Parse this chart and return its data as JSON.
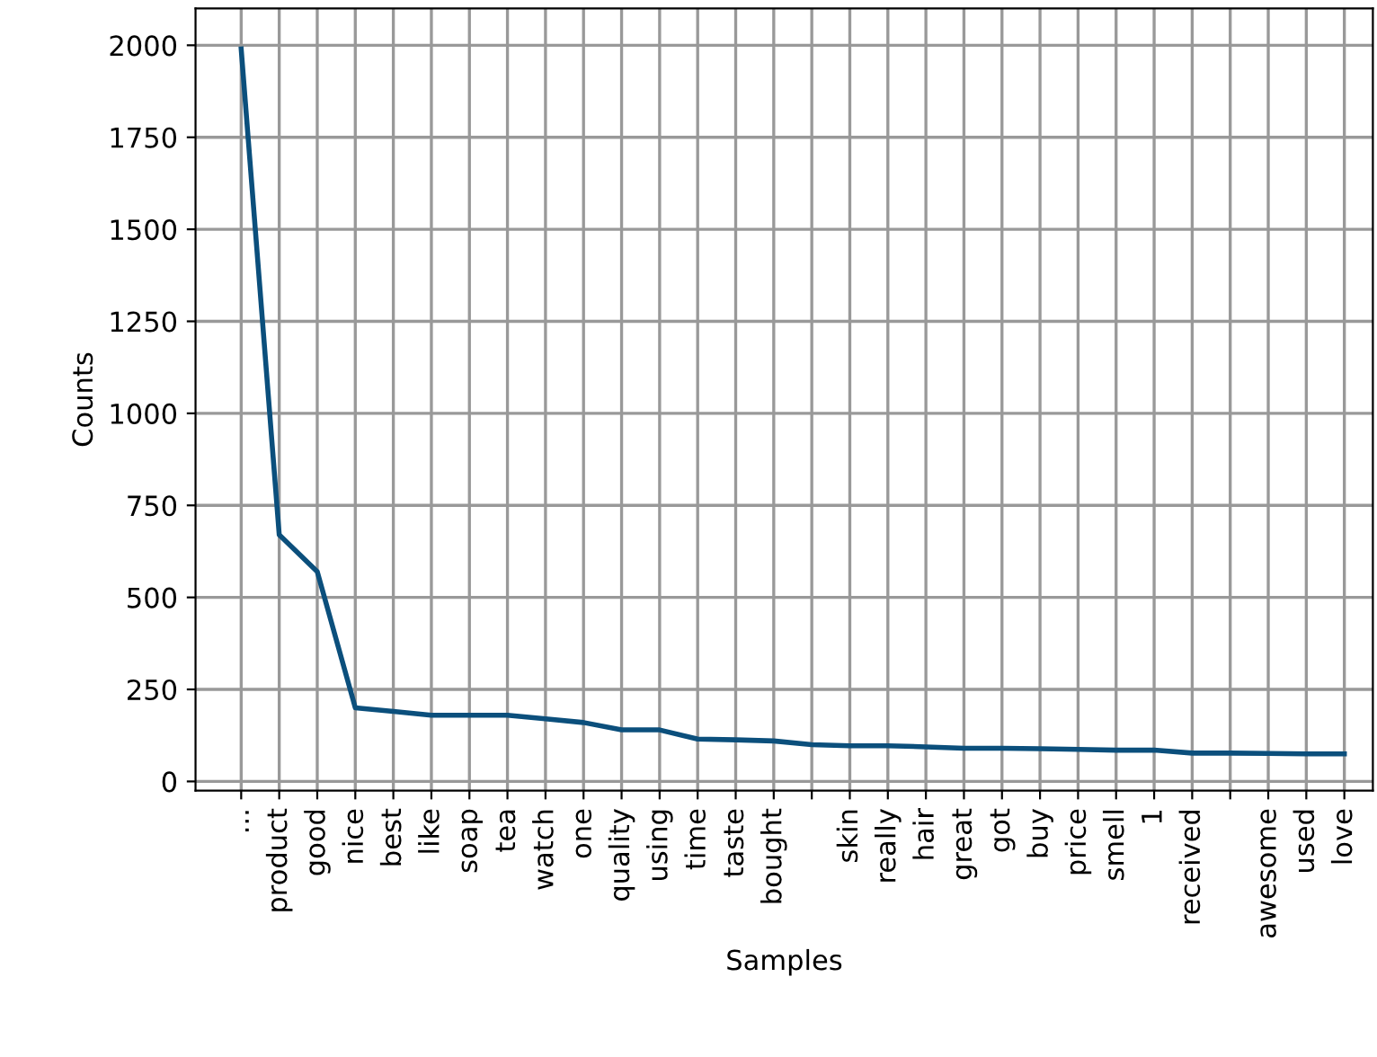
{
  "chart_data": {
    "type": "line",
    "xlabel": "Samples",
    "ylabel": "Counts",
    "categories": [
      "...",
      "product",
      "good",
      "nice",
      "best",
      "like",
      "soap",
      "tea",
      "watch",
      "one",
      "quality",
      "using",
      "time",
      "taste",
      "bought",
      null,
      "skin",
      "really",
      "hair",
      "great",
      "got",
      "buy",
      "price",
      "smell",
      "1",
      "received",
      null,
      "awesome",
      "used",
      "love"
    ],
    "series": [
      {
        "color": "#0b4f7c",
        "values": [
          1990,
          670,
          570,
          200,
          190,
          180,
          180,
          180,
          170,
          160,
          140,
          140,
          115,
          113,
          110,
          100,
          97,
          97,
          94,
          90,
          90,
          89,
          87,
          85,
          85,
          77,
          77,
          76,
          75,
          75
        ]
      }
    ],
    "ylim": [
      -25,
      2100
    ],
    "yticks": [
      0,
      250,
      500,
      750,
      1000,
      1250,
      1500,
      1750,
      2000
    ],
    "grid": true,
    "marker": "none",
    "line_style": "solid"
  }
}
